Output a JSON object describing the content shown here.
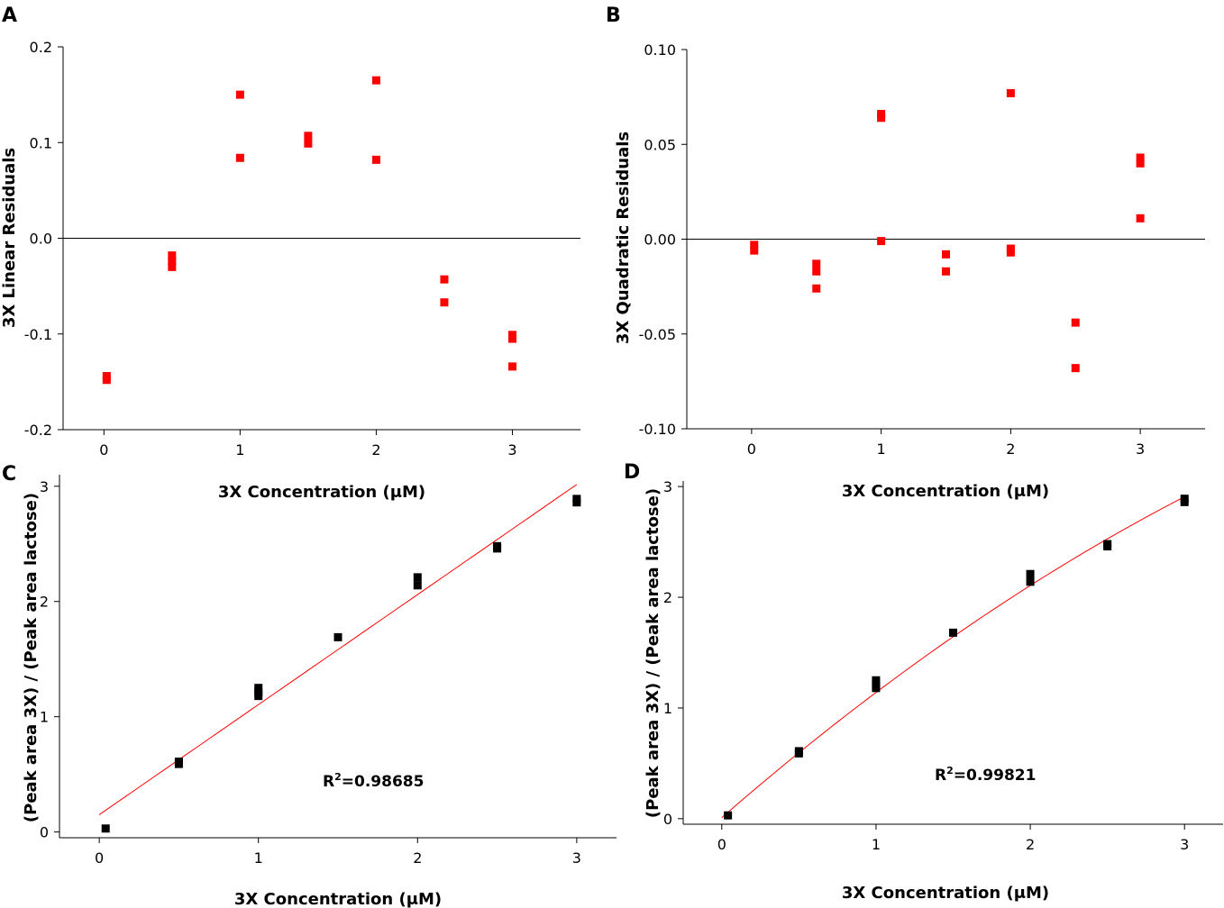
{
  "chart_data": [
    {
      "panel": "A",
      "type": "scatter",
      "title": "",
      "xlabel": "3X Concentration (μM)",
      "ylabel": "3X Linear Residuals",
      "xlim": [
        -0.3,
        3.5
      ],
      "ylim": [
        -0.2,
        0.2
      ],
      "xticks": [
        0,
        1,
        2,
        3
      ],
      "xtick_labels": [
        "0",
        "1",
        "2",
        "3"
      ],
      "yticks": [
        -0.2,
        -0.1,
        0.0,
        0.1,
        0.2
      ],
      "ytick_labels": [
        "-0.2",
        "-0.1",
        "0.0",
        "0.1",
        "0.2"
      ],
      "zero_line": true,
      "marker_color": "#ff0000",
      "series": [
        {
          "name": "residuals",
          "x": [
            0.02,
            0.02,
            0.5,
            0.5,
            0.5,
            1.0,
            1.0,
            1.5,
            1.5,
            2.0,
            2.0,
            2.5,
            2.5,
            3.0,
            3.0,
            3.0
          ],
          "y": [
            -0.144,
            -0.148,
            -0.018,
            -0.024,
            -0.03,
            0.15,
            0.084,
            0.107,
            0.099,
            0.165,
            0.082,
            -0.043,
            -0.067,
            -0.101,
            -0.105,
            -0.134
          ]
        }
      ]
    },
    {
      "panel": "B",
      "type": "scatter",
      "title": "",
      "xlabel": "3X Concentration (μM)",
      "ylabel": "3X Quadratic Residuals",
      "xlim": [
        -0.5,
        3.5
      ],
      "ylim": [
        -0.1,
        0.1
      ],
      "xticks": [
        0,
        1,
        2,
        3
      ],
      "xtick_labels": [
        "0",
        "1",
        "2",
        "3"
      ],
      "yticks": [
        -0.1,
        -0.05,
        0.0,
        0.05,
        0.1
      ],
      "ytick_labels": [
        "-0.10",
        "-0.05",
        "0.00",
        "0.05",
        "0.10"
      ],
      "zero_line": true,
      "marker_color": "#ff0000",
      "series": [
        {
          "name": "residuals",
          "x": [
            0.02,
            0.02,
            0.5,
            0.5,
            0.5,
            1.0,
            1.0,
            1.0,
            1.5,
            1.5,
            2.0,
            2.0,
            2.0,
            2.5,
            2.5,
            3.0,
            3.0,
            3.0
          ],
          "y": [
            -0.003,
            -0.006,
            -0.013,
            -0.017,
            -0.026,
            0.066,
            0.064,
            -0.001,
            -0.008,
            -0.017,
            0.077,
            -0.005,
            -0.007,
            -0.044,
            -0.068,
            0.043,
            0.04,
            0.011
          ]
        }
      ]
    },
    {
      "panel": "C",
      "type": "scatter",
      "title": "",
      "xlabel": "3X Concentration (μM)",
      "ylabel": "(Peak area 3X) / (Peak area lactose)",
      "xlim": [
        -0.25,
        3.25
      ],
      "ylim": [
        -0.05,
        3.1
      ],
      "xticks": [
        0,
        1,
        2,
        3
      ],
      "xtick_labels": [
        "0",
        "1",
        "2",
        "3"
      ],
      "yticks": [
        0,
        1,
        2,
        3
      ],
      "ytick_labels": [
        "0",
        "1",
        "2",
        "3"
      ],
      "marker_color": "#000000",
      "fit_color": "#ff0000",
      "fit": {
        "type": "linear",
        "intercept": 0.15,
        "slope": 0.955,
        "x_range": [
          0,
          3
        ]
      },
      "annotation": {
        "base": "R",
        "sup": "2",
        "rest": "=0.98685"
      },
      "series": [
        {
          "name": "data",
          "x": [
            0.04,
            0.5,
            0.5,
            1.0,
            1.0,
            1.0,
            1.5,
            2.0,
            2.0,
            2.5,
            2.5,
            3.0,
            3.0
          ],
          "y": [
            0.03,
            0.59,
            0.61,
            1.18,
            1.21,
            1.25,
            1.69,
            2.14,
            2.21,
            2.46,
            2.48,
            2.86,
            2.89
          ]
        }
      ]
    },
    {
      "panel": "D",
      "type": "scatter",
      "title": "",
      "xlabel": "3X Concentration (μM)",
      "ylabel": "(Peak area 3X) / (Peak area lactose)",
      "xlim": [
        -0.25,
        3.25
      ],
      "ylim": [
        -0.05,
        3.05
      ],
      "xticks": [
        0,
        1,
        2,
        3
      ],
      "xtick_labels": [
        "0",
        "1",
        "2",
        "3"
      ],
      "yticks": [
        0,
        1,
        2,
        3
      ],
      "ytick_labels": [
        "0",
        "1",
        "2",
        "3"
      ],
      "marker_color": "#000000",
      "fit_color": "#ff0000",
      "fit": {
        "type": "quadratic",
        "a": -0.082,
        "b": 1.212,
        "c": 0.01,
        "x_range": [
          0,
          3
        ]
      },
      "annotation": {
        "base": "R",
        "sup": "2",
        "rest": "=0.99821"
      },
      "series": [
        {
          "name": "data",
          "x": [
            0.04,
            0.5,
            0.5,
            1.0,
            1.0,
            1.0,
            1.5,
            2.0,
            2.0,
            2.5,
            2.5,
            3.0,
            3.0
          ],
          "y": [
            0.03,
            0.59,
            0.61,
            1.18,
            1.21,
            1.25,
            1.68,
            2.14,
            2.21,
            2.46,
            2.48,
            2.86,
            2.89
          ]
        }
      ]
    }
  ]
}
